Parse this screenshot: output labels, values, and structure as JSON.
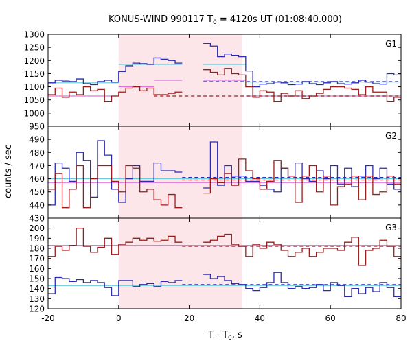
{
  "chart_data": {
    "type": "line",
    "title_main": "KONUS-WIND 990117 T",
    "title_sub": "0",
    "title_rest": " = 4120s UT (01:08:40.000)",
    "xlabel_main": "T - T",
    "xlabel_sub": "0",
    "xlabel_rest": ", s",
    "ylabel": "counts / sec",
    "xlim": [
      -20,
      80
    ],
    "x_ticks": [
      -20,
      0,
      20,
      40,
      60,
      80
    ],
    "x_tick_labels": [
      "-20",
      "0",
      "20",
      "40",
      "60",
      "80"
    ],
    "shaded_interval": [
      0,
      35
    ],
    "colors": {
      "series_1": "#2b2bb0",
      "series_2": "#9b1c1c",
      "cyan": "#66ccdd",
      "magenta": "#dd77dd",
      "shade": "#fde6ea"
    },
    "bin_edges": [
      -20,
      -18,
      -16,
      -14,
      -12,
      -10,
      -8,
      -6,
      -4,
      -2,
      0,
      2,
      4,
      6,
      8,
      10,
      12,
      14,
      16,
      18,
      20,
      22,
      24,
      26,
      28,
      30,
      32,
      34,
      36,
      38,
      40,
      42,
      44,
      46,
      48,
      50,
      52,
      54,
      56,
      58,
      60,
      62,
      64,
      66,
      68,
      70,
      72,
      74,
      76,
      78,
      80
    ],
    "panels": [
      {
        "label": "G1",
        "ylim": [
          950,
          1300
        ],
        "y_ticks": [
          950,
          1000,
          1050,
          1100,
          1150,
          1200,
          1250,
          1300
        ],
        "y_tick_labels": [
          "950",
          "1000",
          "1050",
          "1100",
          "1150",
          "1200",
          "1250",
          "1300"
        ],
        "series": [
          {
            "color": "#2b2bb0",
            "gap_after": 18,
            "gap_before": 24,
            "values": [
              1115,
              1125,
              1122,
              1120,
              1130,
              1112,
              1108,
              1120,
              1125,
              1118,
              1158,
              1180,
              1190,
              1188,
              1185,
              1210,
              1205,
              1200,
              1190,
              null,
              null,
              null,
              1265,
              1255,
              1215,
              1225,
              1220,
              1215,
              1160,
              1100,
              1110,
              1112,
              1118,
              1115,
              1108,
              1110,
              1120,
              1112,
              1108,
              1115,
              1120,
              1112,
              1110,
              1115,
              1125,
              1118,
              1112,
              1110,
              1150,
              1145
            ]
          },
          {
            "color": "#9b1c1c",
            "gap_after": 18,
            "gap_before": 24,
            "values": [
              1070,
              1095,
              1060,
              1080,
              1070,
              1100,
              1085,
              1090,
              1045,
              1065,
              1080,
              1095,
              1100,
              1085,
              1095,
              1070,
              1070,
              1075,
              1080,
              null,
              null,
              null,
              1165,
              1155,
              1145,
              1170,
              1150,
              1145,
              1100,
              1060,
              1085,
              1080,
              1045,
              1075,
              1065,
              1085,
              1055,
              1065,
              1075,
              1090,
              1100,
              1100,
              1095,
              1090,
              1070,
              1100,
              1080,
              1080,
              1045,
              1060
            ]
          }
        ],
        "levels": [
          {
            "color": "#66ccdd",
            "dashed": false,
            "segments": [
              [
                -20,
                0,
                1115
              ],
              [
                0,
                18,
                1185
              ],
              [
                24,
                36,
                1185
              ],
              [
                36,
                80,
                1118
              ]
            ]
          },
          {
            "color": "#2b2bb0",
            "dashed": true,
            "segments": [
              [
                24,
                80,
                1120
              ]
            ]
          },
          {
            "color": "#dd77dd",
            "dashed": false,
            "segments": [
              [
                -20,
                0,
                1065
              ],
              [
                0,
                10,
                1100
              ],
              [
                10,
                18,
                1125
              ],
              [
                24,
                36,
                1125
              ],
              [
                36,
                80,
                1065
              ]
            ]
          },
          {
            "color": "#9b1c1c",
            "dashed": true,
            "segments": [
              [
                10,
                80,
                1065
              ]
            ]
          }
        ]
      },
      {
        "label": "G2",
        "ylim": [
          430,
          500
        ],
        "y_ticks": [
          430,
          440,
          450,
          460,
          470,
          480,
          490
        ],
        "y_tick_labels": [
          "430",
          "440",
          "450",
          "460",
          "470",
          "480",
          "490"
        ],
        "series": [
          {
            "color": "#2b2bb0",
            "gap_after": 18,
            "gap_before": 24,
            "values": [
              440,
              472,
              468,
              458,
              480,
              474,
              446,
              489,
              478,
              452,
              442,
              460,
              470,
              458,
              458,
              472,
              466,
              466,
              465,
              null,
              null,
              null,
              453,
              488,
              455,
              470,
              462,
              462,
              458,
              458,
              455,
              452,
              450,
              468,
              462,
              472,
              460,
              458,
              466,
              460,
              470,
              456,
              468,
              454,
              462,
              470,
              460,
              468,
              456,
              452
            ]
          },
          {
            "color": "#9b1c1c",
            "gap_after": 18,
            "gap_before": 24,
            "values": [
              452,
              464,
              438,
              452,
              470,
              438,
              460,
              470,
              470,
              458,
              450,
              470,
              468,
              450,
              452,
              444,
              440,
              448,
              438,
              null,
              null,
              null,
              449,
              460,
              457,
              464,
              455,
              475,
              466,
              460,
              452,
              458,
              474,
              468,
              462,
              442,
              462,
              470,
              450,
              462,
              440,
              454,
              456,
              462,
              444,
              462,
              448,
              450,
              462,
              456
            ]
          }
        ],
        "levels": [
          {
            "color": "#66ccdd",
            "dashed": false,
            "segments": [
              [
                -20,
                80,
                460
              ]
            ]
          },
          {
            "color": "#2b2bb0",
            "dashed": true,
            "segments": [
              [
                18,
                80,
                461
              ]
            ]
          },
          {
            "color": "#dd77dd",
            "dashed": false,
            "segments": [
              [
                -20,
                80,
                457
              ]
            ]
          },
          {
            "color": "#9b1c1c",
            "dashed": true,
            "segments": [
              [
                18,
                80,
                459
              ]
            ]
          }
        ]
      },
      {
        "label": "G3",
        "ylim": [
          120,
          210
        ],
        "y_ticks": [
          120,
          130,
          140,
          150,
          160,
          170,
          180,
          190,
          200
        ],
        "y_tick_labels": [
          "120",
          "130",
          "140",
          "150",
          "160",
          "170",
          "180",
          "190",
          "200"
        ],
        "series": [
          {
            "color": "#2b2bb0",
            "gap_after": 18,
            "gap_before": 24,
            "values": [
              135,
              151,
              150,
              147,
              149,
              146,
              148,
              146,
              141,
              133,
              148,
              148,
              142,
              144,
              145,
              142,
              147,
              146,
              148,
              null,
              null,
              null,
              154,
              150,
              152,
              148,
              145,
              144,
              140,
              138,
              141,
              146,
              156,
              146,
              140,
              142,
              140,
              141,
              144,
              138,
              146,
              143,
              132,
              140,
              135,
              141,
              137,
              146,
              141,
              132
            ]
          },
          {
            "color": "#9b1c1c",
            "gap_after": 18,
            "gap_before": 24,
            "values": [
              172,
              182,
              178,
              183,
              200,
              182,
              176,
              181,
              190,
              174,
              184,
              186,
              190,
              188,
              190,
              187,
              188,
              192,
              186,
              null,
              null,
              null,
              186,
              188,
              192,
              194,
              184,
              182,
              172,
              184,
              180,
              186,
              184,
              178,
              172,
              176,
              180,
              172,
              176,
              180,
              180,
              178,
              186,
              191,
              163,
              178,
              180,
              188,
              182,
              172
            ]
          }
        ],
        "levels": [
          {
            "color": "#66ccdd",
            "dashed": false,
            "segments": [
              [
                -20,
                80,
                143
              ]
            ]
          },
          {
            "color": "#2b2bb0",
            "dashed": true,
            "segments": [
              [
                18,
                80,
                144
              ]
            ]
          },
          {
            "color": "#dd77dd",
            "dashed": false,
            "segments": [
              [
                -20,
                80,
                183
              ]
            ]
          },
          {
            "color": "#9b1c1c",
            "dashed": true,
            "segments": [
              [
                18,
                80,
                182
              ]
            ]
          }
        ]
      }
    ]
  }
}
